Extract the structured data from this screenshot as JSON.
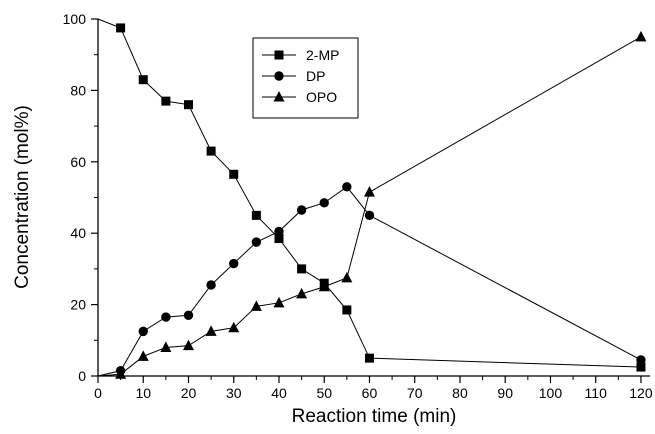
{
  "chart_data": {
    "type": "line",
    "xlabel": "Reaction time (min)",
    "ylabel": "Concentration (mol%)",
    "xlim": [
      0,
      122
    ],
    "ylim": [
      0,
      100
    ],
    "x_ticks": [
      0,
      10,
      20,
      30,
      40,
      50,
      60,
      70,
      80,
      90,
      100,
      110,
      120
    ],
    "y_ticks": [
      0,
      20,
      40,
      60,
      80,
      100
    ],
    "grid": false,
    "legend_position": "top-center",
    "line_color": "#000000",
    "series": [
      {
        "name": "2-MP",
        "marker": "square",
        "points": [
          [
            0,
            100
          ],
          [
            5,
            97.5
          ],
          [
            10,
            83
          ],
          [
            15,
            77
          ],
          [
            20,
            76
          ],
          [
            25,
            63
          ],
          [
            30,
            56.5
          ],
          [
            35,
            45
          ],
          [
            40,
            38.5
          ],
          [
            45,
            30
          ],
          [
            50,
            26
          ],
          [
            55,
            18.5
          ],
          [
            60,
            5
          ],
          [
            120,
            2.5
          ]
        ]
      },
      {
        "name": "DP",
        "marker": "circle",
        "points": [
          [
            0,
            0
          ],
          [
            5,
            1.5
          ],
          [
            10,
            12.5
          ],
          [
            15,
            16.5
          ],
          [
            20,
            17
          ],
          [
            25,
            25.5
          ],
          [
            30,
            31.5
          ],
          [
            35,
            37.5
          ],
          [
            40,
            40.5
          ],
          [
            45,
            46.5
          ],
          [
            50,
            48.5
          ],
          [
            55,
            53
          ],
          [
            60,
            45
          ],
          [
            120,
            4.5
          ]
        ]
      },
      {
        "name": "OPO",
        "marker": "triangle",
        "points": [
          [
            0,
            0
          ],
          [
            5,
            0.5
          ],
          [
            10,
            5.5
          ],
          [
            15,
            8
          ],
          [
            20,
            8.5
          ],
          [
            25,
            12.5
          ],
          [
            30,
            13.5
          ],
          [
            35,
            19.5
          ],
          [
            40,
            20.5
          ],
          [
            45,
            23
          ],
          [
            50,
            25
          ],
          [
            55,
            27.5
          ],
          [
            60,
            51.5
          ],
          [
            120,
            95
          ]
        ]
      }
    ]
  }
}
